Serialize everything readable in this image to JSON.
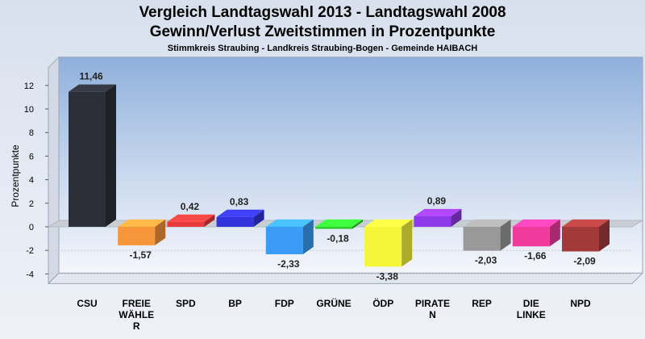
{
  "chart_data": {
    "type": "bar",
    "title": "Vergleich Landtagswahl 2013 - Landtagswahl 2008",
    "subtitle": "Gewinn/Verlust Zweitstimmen in Prozentpunkte",
    "subtitle2": "Stimmkreis Straubing - Landkreis Straubing-Bogen - Gemeinde HAIBACH",
    "xlabel": "",
    "ylabel": "Prozentpunkte",
    "ylim": [
      -4,
      12
    ],
    "yticks": [
      12,
      10,
      8,
      6,
      4,
      2,
      0,
      -2,
      -4
    ],
    "grid": true,
    "categories": [
      "CSU",
      "FREIE WÄHLER",
      "SPD",
      "BP",
      "FDP",
      "GRÜNE",
      "ÖDP",
      "PIRATEN",
      "REP",
      "DIE LINKE",
      "NPD"
    ],
    "category_lines": [
      [
        "CSU"
      ],
      [
        "FREIE",
        "WÄHLE",
        "R"
      ],
      [
        "SPD"
      ],
      [
        "BP"
      ],
      [
        "FDP"
      ],
      [
        "GRÜNE"
      ],
      [
        "ÖDP"
      ],
      [
        "PIRATE",
        "N"
      ],
      [
        "REP"
      ],
      [
        "DIE",
        "LINKE"
      ],
      [
        "NPD"
      ]
    ],
    "values": [
      11.46,
      -1.57,
      0.42,
      0.83,
      -2.33,
      -0.18,
      -3.38,
      0.89,
      -2.03,
      -1.66,
      -2.09
    ],
    "value_labels": [
      "11,46",
      "-1,57",
      "0,42",
      "0,83",
      "-2,33",
      "-0,18",
      "-3,38",
      "0,89",
      "-2,03",
      "-1,66",
      "-2,09"
    ],
    "colors": [
      "#2c2f38",
      "#f7953a",
      "#e83a3a",
      "#3333dd",
      "#3b9cf5",
      "#33cc33",
      "#f5f53a",
      "#8f3ae8",
      "#999999",
      "#f03a9c",
      "#a33a3a"
    ]
  }
}
